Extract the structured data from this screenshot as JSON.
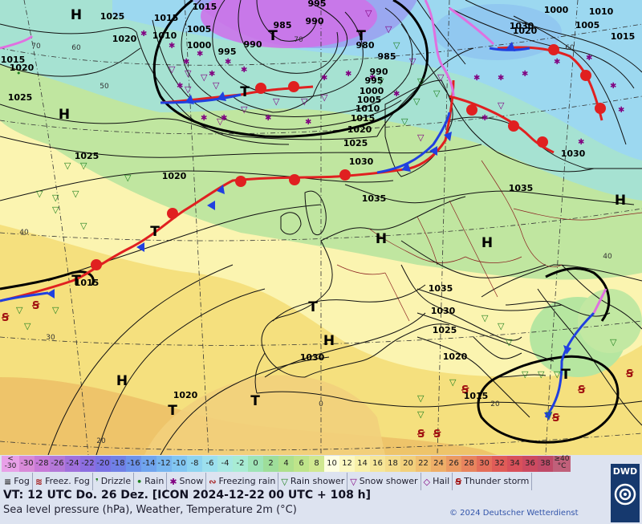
{
  "pressure_labels": [
    "1025",
    "1020",
    "1015",
    "1015",
    "1020",
    "1010",
    "1005",
    "1000",
    "995",
    "990",
    "985",
    "995",
    "990",
    "980",
    "985",
    "990",
    "995",
    "1000",
    "1005",
    "1010",
    "1015",
    "1020",
    "1025",
    "1030",
    "1035",
    "1030",
    "1035",
    "1000",
    "1005",
    "1010",
    "1015",
    "1025",
    "1020",
    "1015",
    "1015",
    "1025",
    "1030",
    "1025",
    "1020",
    "1015",
    "1035",
    "1030",
    "1020",
    "1030",
    "1020"
  ],
  "system_labels": [
    "H",
    "H",
    "H",
    "H",
    "H",
    "H",
    "H",
    "T",
    "T",
    "T",
    "T",
    "T",
    "T",
    "T",
    "T",
    "T"
  ],
  "temperature_labels": [
    "70",
    "60",
    "50",
    "70",
    "60",
    "40",
    "30",
    "20",
    "0",
    "20",
    "40"
  ],
  "scale": {
    "min_label": "< -30",
    "max_label": "≥40 °C",
    "values": [
      "-30",
      "-28",
      "-26",
      "-24",
      "-22",
      "-20",
      "-18",
      "-16",
      "-14",
      "-12",
      "-10",
      "-8",
      "-6",
      "-4",
      "-2",
      "0",
      "2",
      "4",
      "6",
      "8",
      "10",
      "12",
      "14",
      "16",
      "18",
      "20",
      "22",
      "24",
      "26",
      "28",
      "30",
      "32",
      "34",
      "36",
      "38"
    ],
    "colors": [
      "#d88ad8",
      "#c87ad8",
      "#b478d8",
      "#a070dc",
      "#8c6ee0",
      "#7a72e4",
      "#7080e6",
      "#6c92ea",
      "#70a4ee",
      "#78b6f0",
      "#82c6f2",
      "#8ed4f0",
      "#9ce0ee",
      "#a6e8e2",
      "#a8ecd4",
      "#9ee4b6",
      "#9ede9a",
      "#aee08c",
      "#bee48a",
      "#d0e890",
      "#fefee0",
      "#fcf8c0",
      "#f8f0a8",
      "#f6e698",
      "#f4dc8a",
      "#f2d07c",
      "#f0c070",
      "#eeae68",
      "#eb9a62",
      "#e8845e",
      "#e46e5a",
      "#e05c58",
      "#d8505a",
      "#cc4a60",
      "#c04a68"
    ]
  },
  "legend": [
    {
      "label": "Fog",
      "icon": "fog-icon"
    },
    {
      "label": "Freez. Fog",
      "icon": "freezing-fog-icon"
    },
    {
      "label": "Drizzle",
      "icon": "drizzle-icon"
    },
    {
      "label": "Rain",
      "icon": "rain-icon"
    },
    {
      "label": "Snow",
      "icon": "snow-icon"
    },
    {
      "label": "Freezing rain",
      "icon": "freezing-rain-icon"
    },
    {
      "label": "Rain shower",
      "icon": "rain-shower-icon"
    },
    {
      "label": "Snow shower",
      "icon": "snow-shower-icon"
    },
    {
      "label": "Hail",
      "icon": "hail-icon"
    },
    {
      "label": "Thunder storm",
      "icon": "thunderstorm-icon"
    }
  ],
  "valid_time": "VT: 12 UTC Do.   26 Dez. [ICON 2024-12-22   00 UTC + 108 h]",
  "parameter": "Sea level pressure (hPa), Weather, Temperature 2m (°C)",
  "copyright": "© 2024 Deutscher Wetterdienst",
  "logo_text": "DWD"
}
